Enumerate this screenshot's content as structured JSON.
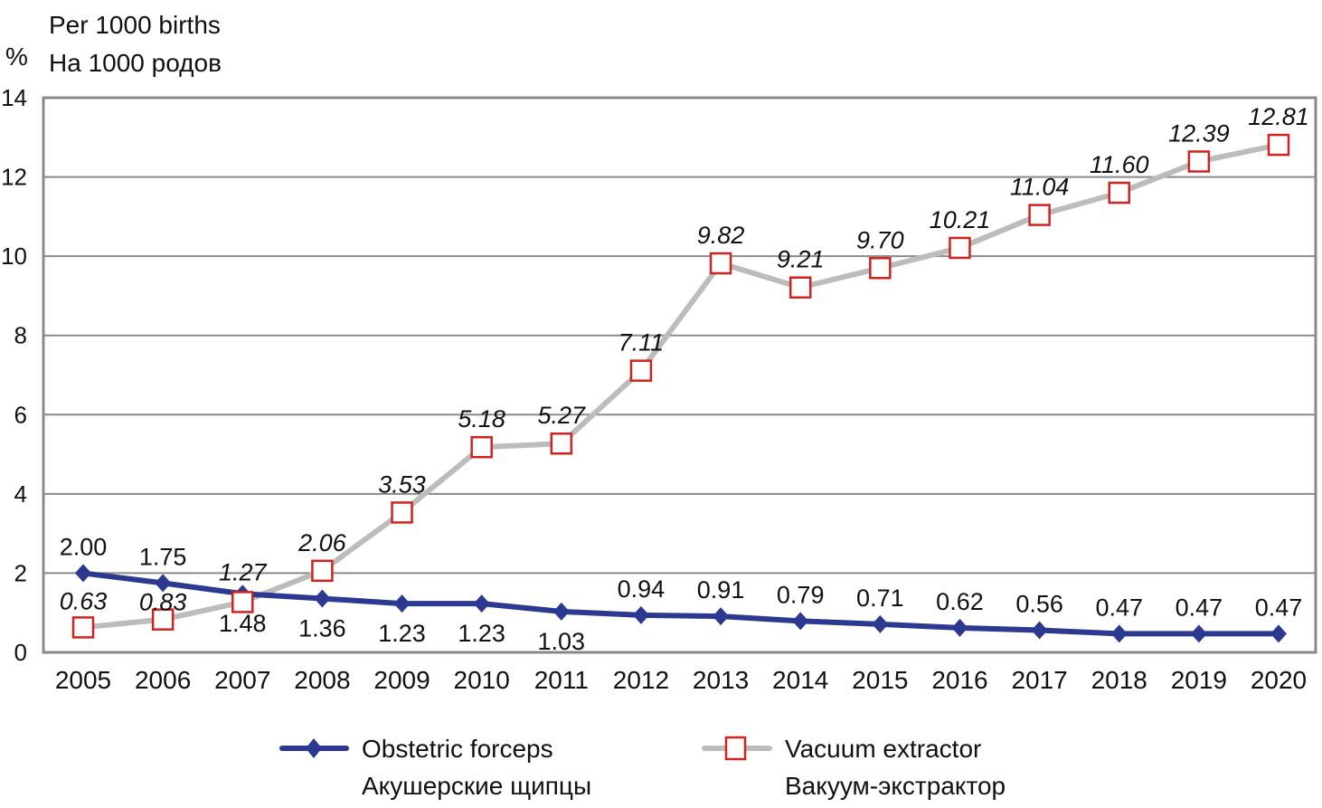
{
  "chart_data": {
    "type": "line",
    "unit_symbol": "%",
    "ylabel_lines": [
      "Per 1000 births",
      "На 1000 родов"
    ],
    "xlabel": "",
    "ylim": [
      0,
      14
    ],
    "yticks": [
      0,
      2,
      4,
      6,
      8,
      10,
      12,
      14
    ],
    "grid": true,
    "categories": [
      "2005",
      "2006",
      "2007",
      "2008",
      "2009",
      "2010",
      "2011",
      "2012",
      "2013",
      "2014",
      "2015",
      "2016",
      "2017",
      "2018",
      "2019",
      "2020"
    ],
    "series": [
      {
        "name": "Obstetric forceps",
        "name_ru": "Акушерские щипцы",
        "color": "#2b3990",
        "marker": "diamond",
        "values": [
          2.0,
          1.75,
          1.48,
          1.36,
          1.23,
          1.23,
          1.03,
          0.94,
          0.91,
          0.79,
          0.71,
          0.62,
          0.56,
          0.47,
          0.47,
          0.47
        ],
        "labels": [
          "2.00",
          "1.75",
          "1.48",
          "1.36",
          "1.23",
          "1.23",
          "1.03",
          "0.94",
          "0.91",
          "0.79",
          "0.71",
          "0.62",
          "0.56",
          "0.47",
          "0.47",
          "0.47"
        ]
      },
      {
        "name": "Vacuum extractor",
        "name_ru": "Вакуум-экстрактор",
        "color": "#bcbcbc",
        "marker_color": "#d0231f",
        "marker": "square-open",
        "values": [
          0.63,
          0.83,
          1.27,
          2.06,
          3.53,
          5.18,
          5.27,
          7.11,
          9.82,
          9.21,
          9.7,
          10.21,
          11.04,
          11.6,
          12.39,
          12.81
        ],
        "labels": [
          "0.63",
          "0.83",
          "1.27",
          "2.06",
          "3.53",
          "5.18",
          "5.27",
          "7.11",
          "9.82",
          "9.21",
          "9.70",
          "10.21",
          "11.04",
          "11.60",
          "12.39",
          "12.81"
        ]
      }
    ],
    "legend_position": "bottom"
  }
}
